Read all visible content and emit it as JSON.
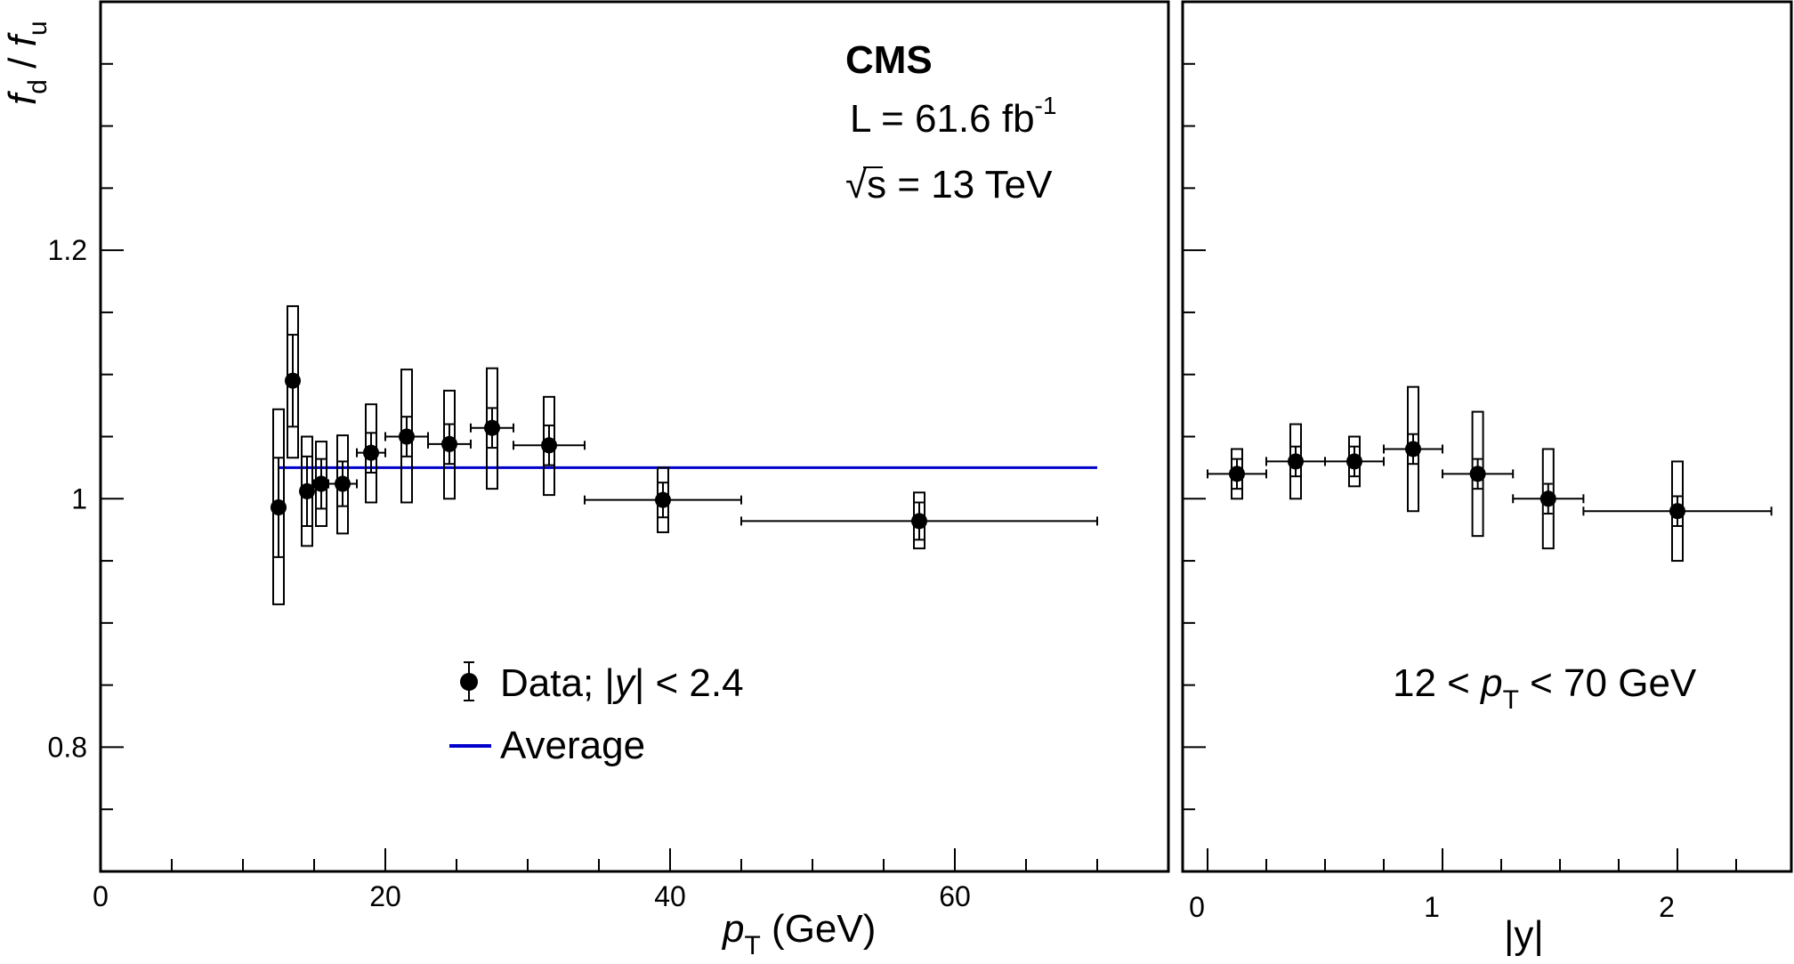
{
  "chart_data": [
    {
      "type": "scatter",
      "panel": "left",
      "xlabel": "p_T (GeV)",
      "xlabel_main": "p",
      "xlabel_sub": "T",
      "xlabel_unit": " (GeV)",
      "ylabel": "f_d / f_u",
      "ylabel_parts": {
        "f1": "f",
        "sub1": "d",
        "slash": " / ",
        "f2": "f",
        "sub2": "u"
      },
      "xlim": [
        0,
        75
      ],
      "ylim": [
        0.7,
        1.4
      ],
      "x_ticks": [
        0,
        20,
        40,
        60
      ],
      "x_tick_labels": [
        "0",
        "20",
        "40",
        "60"
      ],
      "y_ticks": [
        0.8,
        1.0,
        1.2
      ],
      "y_tick_labels": [
        "0.8",
        "1",
        "1.2"
      ],
      "grid": false,
      "annotations": {
        "experiment": "CMS",
        "lumi_prefix": "L = 61.6 fb",
        "lumi_sup": "-1",
        "energy_root": "√",
        "energy_rest": "s = 13 TeV"
      },
      "legend": {
        "position": "bottom-left",
        "data_label_prefix": "Data; |",
        "data_label_var": "y",
        "data_label_suffix": "| < 2.4",
        "average_label": "Average"
      },
      "average": {
        "value": 1.025,
        "x_range": [
          12.5,
          70
        ],
        "color": "#0000cc"
      },
      "points": [
        {
          "x": 12.5,
          "y": 0.993,
          "xlo": 12.5,
          "xhi": 12.5,
          "stat": 0.04,
          "syst_lo": 0.915,
          "syst_hi": 1.072
        },
        {
          "x": 13.5,
          "y": 1.095,
          "xlo": 13.5,
          "xhi": 13.5,
          "stat": 0.037,
          "syst_lo": 1.033,
          "syst_hi": 1.155
        },
        {
          "x": 14.5,
          "y": 1.006,
          "xlo": 14.5,
          "xhi": 14.5,
          "stat": 0.028,
          "syst_lo": 0.962,
          "syst_hi": 1.05
        },
        {
          "x": 15.5,
          "y": 1.012,
          "xlo": 15.0,
          "xhi": 16.0,
          "stat": 0.02,
          "syst_lo": 0.978,
          "syst_hi": 1.046
        },
        {
          "x": 17.0,
          "y": 1.012,
          "xlo": 16.0,
          "xhi": 18.0,
          "stat": 0.018,
          "syst_lo": 0.972,
          "syst_hi": 1.051
        },
        {
          "x": 19.0,
          "y": 1.037,
          "xlo": 18.0,
          "xhi": 20.0,
          "stat": 0.016,
          "syst_lo": 0.997,
          "syst_hi": 1.076
        },
        {
          "x": 21.5,
          "y": 1.05,
          "xlo": 20.0,
          "xhi": 23.0,
          "stat": 0.016,
          "syst_lo": 0.997,
          "syst_hi": 1.104
        },
        {
          "x": 24.5,
          "y": 1.044,
          "xlo": 23.0,
          "xhi": 26.0,
          "stat": 0.016,
          "syst_lo": 1.0,
          "syst_hi": 1.087
        },
        {
          "x": 27.5,
          "y": 1.057,
          "xlo": 26.0,
          "xhi": 29.0,
          "stat": 0.016,
          "syst_lo": 1.008,
          "syst_hi": 1.105
        },
        {
          "x": 31.5,
          "y": 1.043,
          "xlo": 29.0,
          "xhi": 34.0,
          "stat": 0.016,
          "syst_lo": 1.003,
          "syst_hi": 1.082
        },
        {
          "x": 39.5,
          "y": 0.999,
          "xlo": 34.0,
          "xhi": 45.0,
          "stat": 0.014,
          "syst_lo": 0.973,
          "syst_hi": 1.025
        },
        {
          "x": 57.5,
          "y": 0.982,
          "xlo": 45.0,
          "xhi": 70.0,
          "stat": 0.015,
          "syst_lo": 0.96,
          "syst_hi": 1.005
        }
      ]
    },
    {
      "type": "scatter",
      "panel": "right",
      "xlabel": "|y|",
      "xlim": [
        -0.1,
        2.5
      ],
      "ylim": [
        0.7,
        1.4
      ],
      "x_ticks": [
        0,
        1,
        2
      ],
      "x_tick_labels": [
        "0",
        "1",
        "2"
      ],
      "grid": false,
      "annotation": {
        "prefix": "12 < ",
        "var": "p",
        "sub": "T",
        "suffix": " < 70 GeV"
      },
      "points": [
        {
          "x": 0.125,
          "y": 1.02,
          "xlo": 0.0,
          "xhi": 0.25,
          "stat": 0.012,
          "syst_lo": 1.0,
          "syst_hi": 1.04
        },
        {
          "x": 0.375,
          "y": 1.03,
          "xlo": 0.25,
          "xhi": 0.5,
          "stat": 0.012,
          "syst_lo": 1.0,
          "syst_hi": 1.06
        },
        {
          "x": 0.625,
          "y": 1.03,
          "xlo": 0.5,
          "xhi": 0.75,
          "stat": 0.012,
          "syst_lo": 1.01,
          "syst_hi": 1.05
        },
        {
          "x": 0.875,
          "y": 1.04,
          "xlo": 0.75,
          "xhi": 1.0,
          "stat": 0.012,
          "syst_lo": 0.99,
          "syst_hi": 1.09
        },
        {
          "x": 1.15,
          "y": 1.02,
          "xlo": 1.0,
          "xhi": 1.3,
          "stat": 0.012,
          "syst_lo": 0.97,
          "syst_hi": 1.07
        },
        {
          "x": 1.45,
          "y": 1.0,
          "xlo": 1.3,
          "xhi": 1.6,
          "stat": 0.012,
          "syst_lo": 0.96,
          "syst_hi": 1.04
        },
        {
          "x": 2.0,
          "y": 0.99,
          "xlo": 1.6,
          "xhi": 2.4,
          "stat": 0.012,
          "syst_lo": 0.95,
          "syst_hi": 1.03
        }
      ]
    }
  ]
}
